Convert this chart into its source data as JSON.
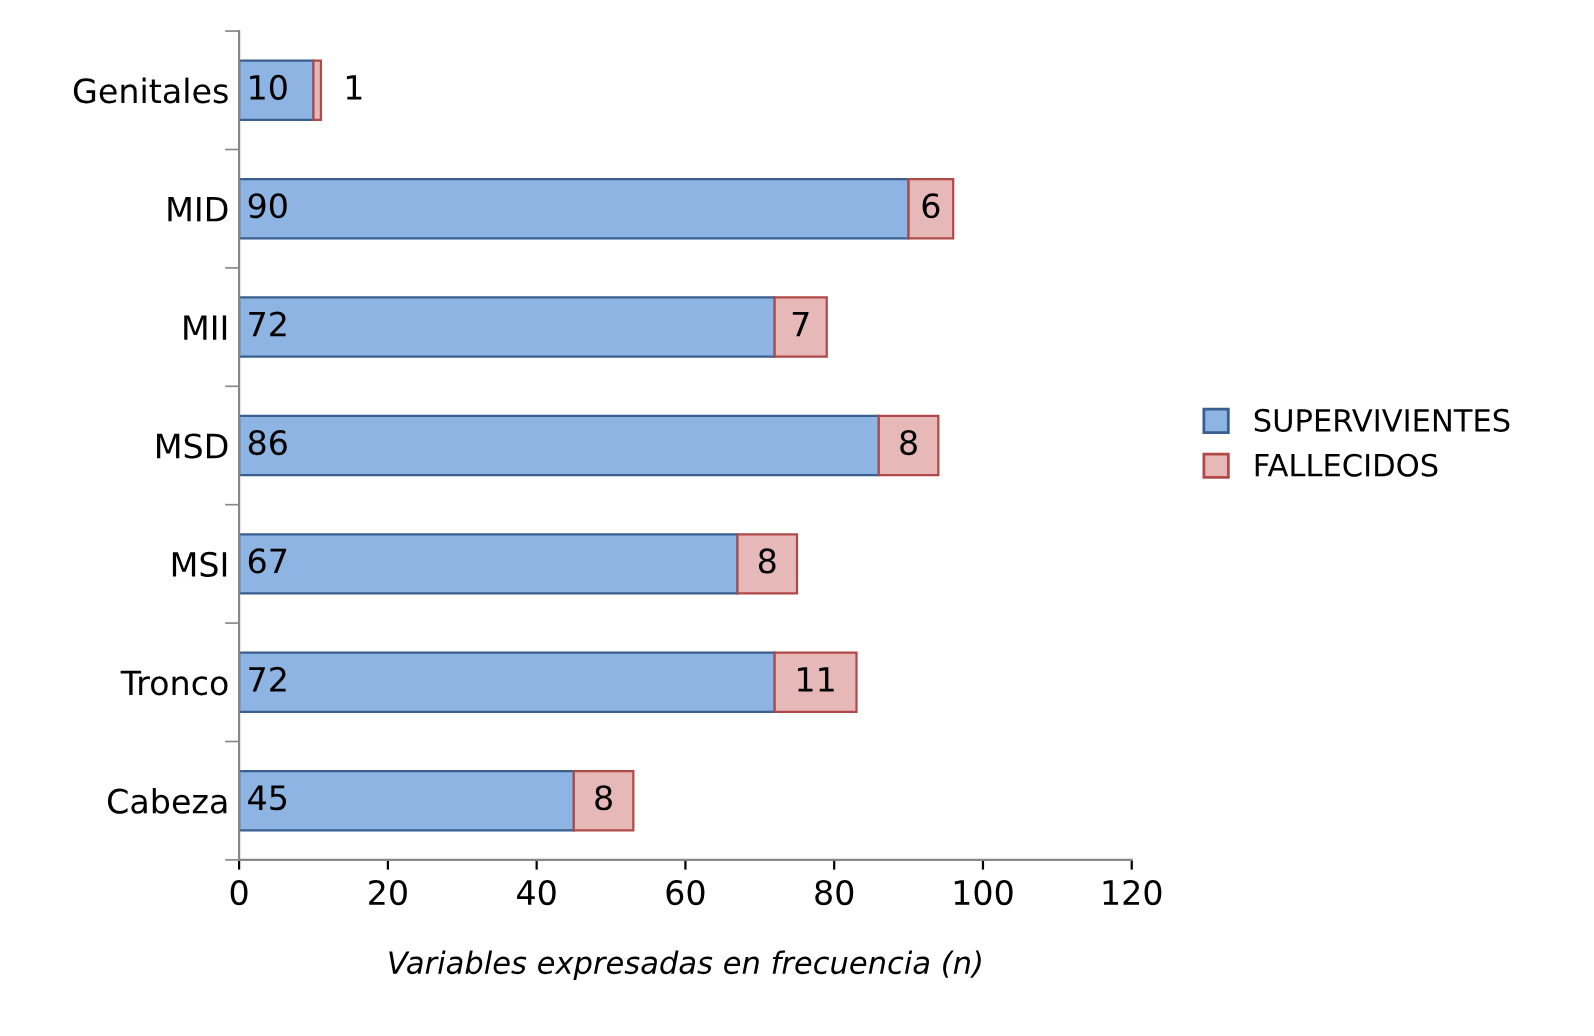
{
  "chart_data": {
    "type": "bar",
    "orientation": "horizontal",
    "stacked": true,
    "xlabel": "Variables expresadas en frecuencia (n)",
    "categories": [
      "Genitales",
      "MID",
      "MII",
      "MSD",
      "MSI",
      "Tronco",
      "Cabeza"
    ],
    "series": [
      {
        "name": "SUPERVIVIENTES",
        "color": "#8db4e2",
        "values": [
          10,
          90,
          72,
          86,
          67,
          72,
          45
        ]
      },
      {
        "name": "FALLECIDOS",
        "color": "#e6b9b8",
        "values": [
          1,
          6,
          7,
          8,
          8,
          11,
          8
        ]
      }
    ],
    "xlim": [
      0,
      120
    ],
    "xticks": [
      0,
      20,
      40,
      60,
      80,
      100,
      120
    ],
    "data_labels": true,
    "grid": false,
    "legend": "right"
  }
}
